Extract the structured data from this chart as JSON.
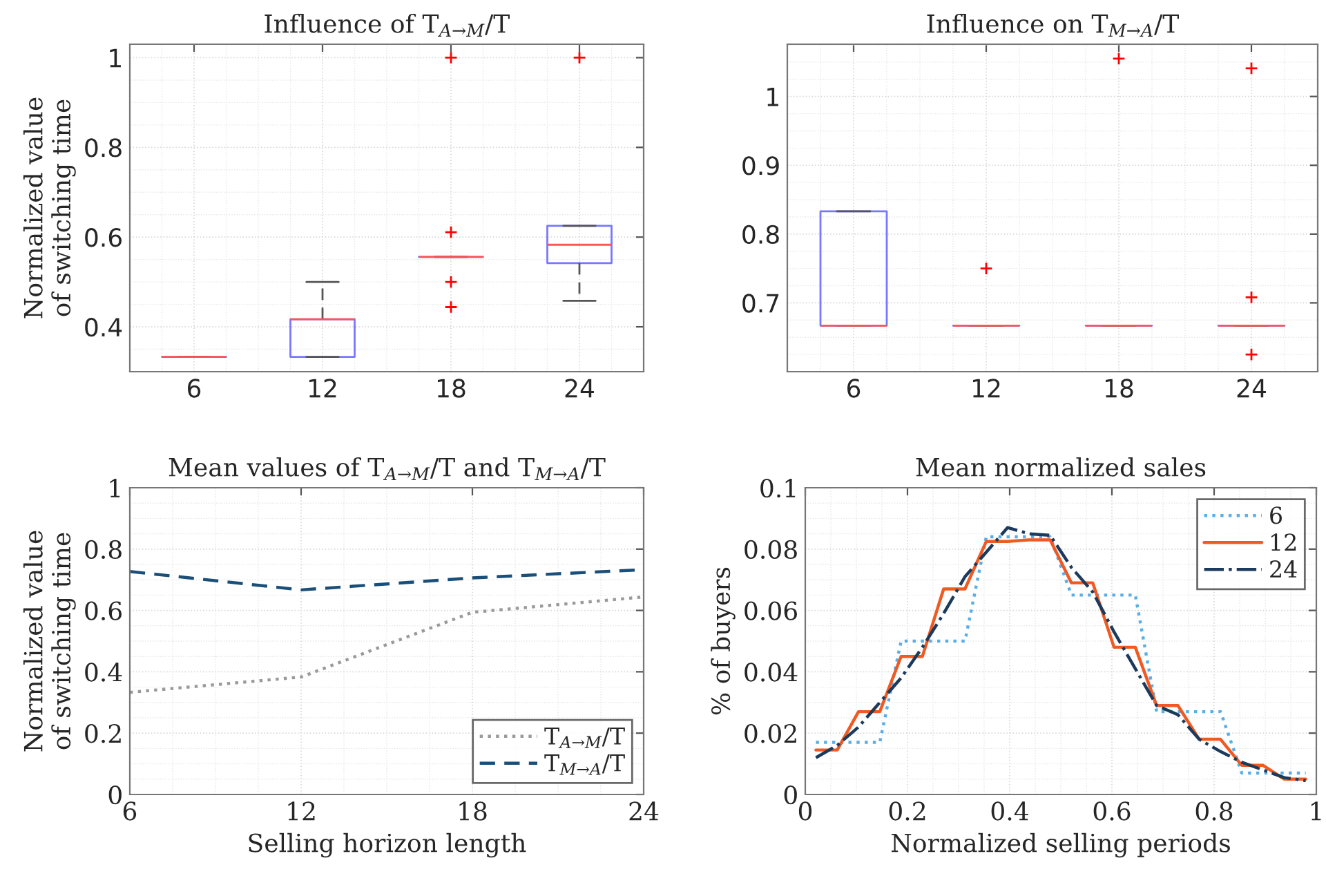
{
  "chart_data": [
    {
      "type": "box",
      "title": "Influence of T$_{A→M}$/T",
      "ylabel": "Normalized value\nof switching time",
      "categories": [
        "6",
        "12",
        "18",
        "24"
      ],
      "boxes": [
        {
          "low": 0.333,
          "q1": 0.333,
          "median": 0.333,
          "q3": 0.333,
          "high": 0.333
        },
        {
          "low": 0.333,
          "q1": 0.333,
          "median": 0.417,
          "q3": 0.417,
          "high": 0.5
        },
        {
          "low": 0.556,
          "q1": 0.556,
          "median": 0.556,
          "q3": 0.556,
          "high": 0.556,
          "outliers": [
            1.0,
            0.611,
            0.5,
            0.444
          ]
        },
        {
          "low": 0.458,
          "q1": 0.542,
          "median": 0.583,
          "q3": 0.625,
          "high": 0.625,
          "outliers": [
            1.0
          ]
        }
      ],
      "ylim": [
        0.3,
        1.03
      ],
      "yticks": [
        0.4,
        0.6,
        0.8,
        1
      ],
      "grid": true
    },
    {
      "type": "box",
      "title": "Influence on T$_{M→A}$/T",
      "categories": [
        "6",
        "12",
        "18",
        "24"
      ],
      "boxes": [
        {
          "low": 0.667,
          "q1": 0.667,
          "median": 0.667,
          "q3": 0.833,
          "high": 0.833
        },
        {
          "low": 0.667,
          "q1": 0.667,
          "median": 0.667,
          "q3": 0.667,
          "high": 0.667,
          "outliers": [
            0.75
          ]
        },
        {
          "low": 0.667,
          "q1": 0.667,
          "median": 0.667,
          "q3": 0.667,
          "high": 0.667,
          "outliers": [
            1.055
          ]
        },
        {
          "low": 0.667,
          "q1": 0.667,
          "median": 0.667,
          "q3": 0.667,
          "high": 0.667,
          "outliers": [
            1.041,
            0.708,
            0.625
          ]
        }
      ],
      "ylim": [
        0.6,
        1.076
      ],
      "yticks": [
        0.7,
        0.8,
        0.9,
        1
      ],
      "grid": true
    },
    {
      "type": "line",
      "title": "Mean values of T$_{A→M}$/T and T$_{M→A}$/T",
      "xlabel": "Selling horizon length",
      "ylabel": "Normalized value\nof switching time",
      "x": [
        6,
        12,
        18,
        24
      ],
      "series": [
        {
          "name": "T$_{A→M}$/T",
          "color": "#9a9a9a",
          "line_style": "dotted",
          "values": [
            0.333,
            0.383,
            0.594,
            0.644
          ]
        },
        {
          "name": "T$_{M→A}$/T",
          "color": "#1a4f7a",
          "line_style": "dashed",
          "values": [
            0.727,
            0.667,
            0.706,
            0.733
          ]
        }
      ],
      "xlim": [
        6,
        24
      ],
      "xticks": [
        6,
        12,
        18,
        24
      ],
      "ylim": [
        0,
        1
      ],
      "yticks": [
        0,
        0.2,
        0.4,
        0.6,
        0.8,
        1
      ],
      "grid": true,
      "legend": "bottom right"
    },
    {
      "type": "line",
      "title": "Mean normalized sales",
      "xlabel": "Normalized selling periods",
      "ylabel": "% of buyers",
      "x": [
        0.0208,
        0.0625,
        0.1042,
        0.1458,
        0.1875,
        0.2292,
        0.2708,
        0.3125,
        0.3542,
        0.3958,
        0.4375,
        0.4792,
        0.5208,
        0.5625,
        0.6042,
        0.6458,
        0.6875,
        0.7292,
        0.7708,
        0.8125,
        0.8542,
        0.8958,
        0.9375,
        0.9792
      ],
      "series": [
        {
          "name": "6",
          "color": "#5aaee8",
          "line_style": "dotted",
          "values": [
            0.017,
            0.017,
            0.017,
            0.017,
            0.05,
            0.05,
            0.05,
            0.05,
            0.084,
            0.084,
            0.084,
            0.084,
            0.065,
            0.065,
            0.065,
            0.065,
            0.027,
            0.027,
            0.027,
            0.027,
            0.007,
            0.007,
            0.007,
            0.007
          ]
        },
        {
          "name": "12",
          "color": "#f05a22",
          "line_style": "solid",
          "values": [
            0.0145,
            0.0145,
            0.027,
            0.027,
            0.045,
            0.045,
            0.067,
            0.067,
            0.0825,
            0.0825,
            0.083,
            0.083,
            0.069,
            0.069,
            0.048,
            0.048,
            0.029,
            0.029,
            0.018,
            0.018,
            0.0095,
            0.0095,
            0.005,
            0.005
          ]
        },
        {
          "name": "24",
          "color": "#1b3a5c",
          "line_style": "dashdot",
          "values": [
            0.012,
            0.016,
            0.022,
            0.03,
            0.038,
            0.048,
            0.059,
            0.071,
            0.079,
            0.087,
            0.085,
            0.0845,
            0.074,
            0.066,
            0.053,
            0.041,
            0.029,
            0.026,
            0.018,
            0.014,
            0.0105,
            0.008,
            0.0055,
            0.0045
          ]
        }
      ],
      "xlim": [
        0,
        1
      ],
      "xticks": [
        0,
        0.2,
        0.4,
        0.6,
        0.8,
        1
      ],
      "ylim": [
        0,
        0.1
      ],
      "yticks": [
        0,
        0.02,
        0.04,
        0.06,
        0.08,
        0.1
      ],
      "grid": true,
      "legend": "top right"
    }
  ]
}
